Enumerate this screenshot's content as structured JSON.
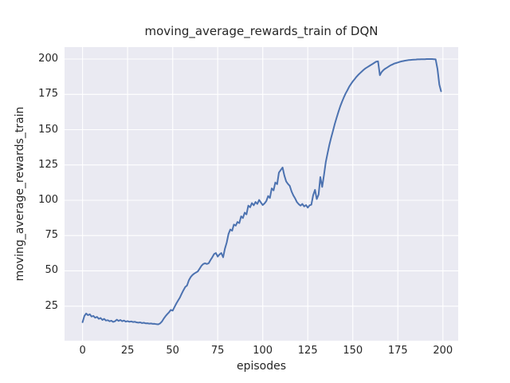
{
  "colors": {
    "line": "#4c72b0",
    "plot_bg": "#eaeaf2",
    "grid": "#ffffff",
    "figure_bg": "#ffffff",
    "text": "#262626"
  },
  "chart_data": {
    "type": "line",
    "title": "moving_average_rewards_train of DQN",
    "xlabel": "episodes",
    "ylabel": "moving_average_rewards_train",
    "x_ticks": [
      0,
      25,
      50,
      75,
      100,
      125,
      150,
      175,
      200
    ],
    "y_ticks": [
      25,
      50,
      75,
      100,
      125,
      150,
      175,
      200
    ],
    "xlim": [
      -10,
      208.5
    ],
    "ylim": [
      0.5,
      208.5
    ],
    "grid": true,
    "legend": false,
    "series": [
      {
        "name": "moving_average_rewards_train",
        "color": "#4c72b0",
        "points": [
          [
            0,
            13.6
          ],
          [
            1,
            18.0
          ],
          [
            2,
            19.8
          ],
          [
            3,
            18.6
          ],
          [
            4,
            19.2
          ],
          [
            5,
            17.6
          ],
          [
            6,
            18.1
          ],
          [
            7,
            16.8
          ],
          [
            8,
            17.4
          ],
          [
            9,
            16.0
          ],
          [
            10,
            16.6
          ],
          [
            11,
            15.2
          ],
          [
            12,
            16.0
          ],
          [
            13,
            14.8
          ],
          [
            14,
            15.0
          ],
          [
            15,
            14.3
          ],
          [
            16,
            14.7
          ],
          [
            17,
            13.8
          ],
          [
            18,
            14.3
          ],
          [
            19,
            15.4
          ],
          [
            20,
            14.5
          ],
          [
            21,
            15.2
          ],
          [
            22,
            14.3
          ],
          [
            23,
            14.8
          ],
          [
            24,
            14.0
          ],
          [
            25,
            14.4
          ],
          [
            26,
            13.9
          ],
          [
            27,
            14.2
          ],
          [
            28,
            13.7
          ],
          [
            29,
            13.9
          ],
          [
            30,
            13.5
          ],
          [
            31,
            13.3
          ],
          [
            32,
            13.5
          ],
          [
            33,
            13.0
          ],
          [
            34,
            13.2
          ],
          [
            35,
            12.8
          ],
          [
            36,
            12.9
          ],
          [
            37,
            12.6
          ],
          [
            38,
            12.7
          ],
          [
            39,
            12.4
          ],
          [
            40,
            12.5
          ],
          [
            41,
            12.2
          ],
          [
            42,
            12.1
          ],
          [
            43,
            12.7
          ],
          [
            44,
            14.0
          ],
          [
            45,
            16.0
          ],
          [
            46,
            17.8
          ],
          [
            47,
            19.3
          ],
          [
            48,
            20.6
          ],
          [
            49,
            22.3
          ],
          [
            50,
            21.8
          ],
          [
            51,
            24.3
          ],
          [
            52,
            26.8
          ],
          [
            53,
            28.9
          ],
          [
            54,
            31.0
          ],
          [
            55,
            33.8
          ],
          [
            56,
            36.3
          ],
          [
            57,
            38.6
          ],
          [
            58,
            39.6
          ],
          [
            59,
            43.3
          ],
          [
            60,
            45.6
          ],
          [
            61,
            47.0
          ],
          [
            62,
            48.1
          ],
          [
            63,
            48.8
          ],
          [
            64,
            49.6
          ],
          [
            65,
            51.6
          ],
          [
            66,
            53.6
          ],
          [
            67,
            54.9
          ],
          [
            68,
            55.3
          ],
          [
            69,
            54.9
          ],
          [
            70,
            55.4
          ],
          [
            71,
            57.6
          ],
          [
            72,
            59.6
          ],
          [
            73,
            61.9
          ],
          [
            74,
            62.6
          ],
          [
            75,
            60.1
          ],
          [
            76,
            61.6
          ],
          [
            77,
            62.6
          ],
          [
            78,
            59.6
          ],
          [
            79,
            65.6
          ],
          [
            80,
            70.0
          ],
          [
            81,
            76.0
          ],
          [
            82,
            79.3
          ],
          [
            83,
            78.4
          ],
          [
            84,
            82.8
          ],
          [
            85,
            82.0
          ],
          [
            86,
            84.6
          ],
          [
            87,
            83.8
          ],
          [
            88,
            88.6
          ],
          [
            89,
            87.4
          ],
          [
            90,
            91.2
          ],
          [
            91,
            90.0
          ],
          [
            92,
            96.2
          ],
          [
            93,
            95.0
          ],
          [
            94,
            98.0
          ],
          [
            95,
            96.4
          ],
          [
            96,
            98.8
          ],
          [
            97,
            97.4
          ],
          [
            98,
            100.2
          ],
          [
            99,
            98.4
          ],
          [
            100,
            96.6
          ],
          [
            101,
            97.8
          ],
          [
            102,
            99.4
          ],
          [
            103,
            103.0
          ],
          [
            104,
            101.6
          ],
          [
            105,
            108.4
          ],
          [
            106,
            107.0
          ],
          [
            107,
            112.6
          ],
          [
            108,
            111.4
          ],
          [
            109,
            119.6
          ],
          [
            110,
            121.4
          ],
          [
            111,
            123.2
          ],
          [
            112,
            117.6
          ],
          [
            113,
            113.4
          ],
          [
            114,
            111.6
          ],
          [
            115,
            110.2
          ],
          [
            116,
            106.2
          ],
          [
            117,
            103.4
          ],
          [
            118,
            101.2
          ],
          [
            119,
            98.6
          ],
          [
            120,
            97.2
          ],
          [
            121,
            96.2
          ],
          [
            122,
            97.4
          ],
          [
            123,
            95.6
          ],
          [
            124,
            96.6
          ],
          [
            125,
            94.8
          ],
          [
            126,
            96.4
          ],
          [
            127,
            96.8
          ],
          [
            128,
            103.6
          ],
          [
            129,
            107.4
          ],
          [
            130,
            100.8
          ],
          [
            131,
            104.0
          ],
          [
            132,
            116.4
          ],
          [
            133,
            109.4
          ],
          [
            134,
            118.0
          ],
          [
            135,
            127.0
          ],
          [
            136,
            133.4
          ],
          [
            137,
            139.2
          ],
          [
            138,
            144.4
          ],
          [
            139,
            149.2
          ],
          [
            140,
            154.0
          ],
          [
            141,
            158.4
          ],
          [
            142,
            162.6
          ],
          [
            143,
            166.4
          ],
          [
            144,
            169.8
          ],
          [
            145,
            172.8
          ],
          [
            146,
            175.6
          ],
          [
            147,
            178.0
          ],
          [
            148,
            180.4
          ],
          [
            149,
            182.4
          ],
          [
            150,
            184.2
          ],
          [
            151,
            185.8
          ],
          [
            152,
            187.4
          ],
          [
            153,
            188.8
          ],
          [
            154,
            190.0
          ],
          [
            155,
            191.2
          ],
          [
            156,
            192.4
          ],
          [
            157,
            193.4
          ],
          [
            158,
            194.2
          ],
          [
            159,
            195.0
          ],
          [
            160,
            195.8
          ],
          [
            161,
            196.6
          ],
          [
            162,
            197.4
          ],
          [
            163,
            198.2
          ],
          [
            164,
            198.4
          ],
          [
            165,
            188.6
          ],
          [
            166,
            190.8
          ],
          [
            167,
            192.2
          ],
          [
            168,
            193.2
          ],
          [
            169,
            194.0
          ],
          [
            170,
            194.8
          ],
          [
            171,
            195.6
          ],
          [
            172,
            196.2
          ],
          [
            173,
            196.8
          ],
          [
            174,
            197.2
          ],
          [
            175,
            197.6
          ],
          [
            176,
            198.0
          ],
          [
            177,
            198.4
          ],
          [
            178,
            198.6
          ],
          [
            179,
            198.9
          ],
          [
            180,
            199.1
          ],
          [
            181,
            199.3
          ],
          [
            182,
            199.4
          ],
          [
            183,
            199.5
          ],
          [
            184,
            199.6
          ],
          [
            185,
            199.7
          ],
          [
            186,
            199.8
          ],
          [
            187,
            199.8
          ],
          [
            188,
            199.9
          ],
          [
            189,
            199.9
          ],
          [
            190,
            199.9
          ],
          [
            191,
            200.0
          ],
          [
            192,
            200.0
          ],
          [
            193,
            200.0
          ],
          [
            194,
            200.0
          ],
          [
            195,
            199.9
          ],
          [
            196,
            199.8
          ],
          [
            197,
            193.0
          ],
          [
            198,
            182.0
          ],
          [
            199,
            177.2
          ]
        ]
      }
    ]
  }
}
